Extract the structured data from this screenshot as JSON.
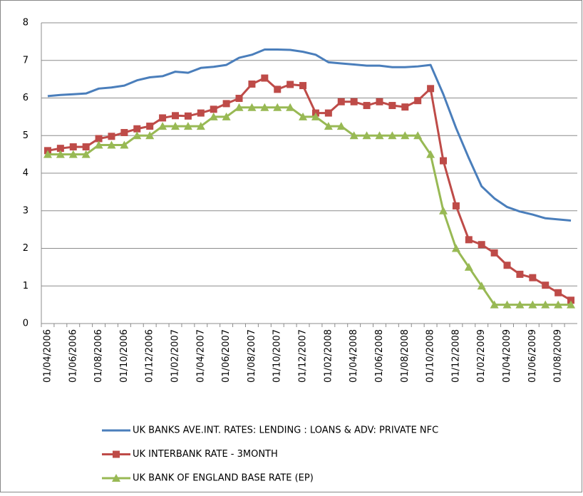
{
  "chart_data": {
    "type": "line",
    "categories": [
      "01/04/2006",
      null,
      "01/06/2006",
      null,
      "01/08/2006",
      null,
      "01/10/2006",
      null,
      "01/12/2006",
      null,
      "01/02/2007",
      null,
      "01/04/2007",
      null,
      "01/06/2007",
      null,
      "01/08/2007",
      null,
      "01/10/2007",
      null,
      "01/12/2007",
      null,
      "01/02/2008",
      null,
      "01/04/2008",
      null,
      "01/06/2008",
      null,
      "01/08/2008",
      null,
      "01/10/2008",
      null,
      "01/12/2008",
      null,
      "01/02/2009",
      null,
      "01/04/2009",
      null,
      "01/06/2009",
      null,
      "01/08/2009",
      null
    ],
    "series": [
      {
        "name": "UK BANKS AVE.INT.  RATES:  LENDING  : LOANS & ADV: PRIVATE  NFC",
        "color": "#4a7ebb",
        "marker": "none",
        "values": [
          6.05,
          6.08,
          6.1,
          6.12,
          6.25,
          6.28,
          6.33,
          6.47,
          6.55,
          6.58,
          6.7,
          6.67,
          6.8,
          6.83,
          6.88,
          7.07,
          7.15,
          7.29,
          7.29,
          7.28,
          7.23,
          7.15,
          6.95,
          6.92,
          6.89,
          6.86,
          6.86,
          6.82,
          6.82,
          6.84,
          6.88,
          6.1,
          5.2,
          4.4,
          3.65,
          3.33,
          3.1,
          2.98,
          2.9,
          2.8,
          2.77,
          2.74
        ]
      },
      {
        "name": "UK INTERBANK  RATE - 3MONTH",
        "color": "#be4b48",
        "marker": "square",
        "values": [
          4.6,
          4.66,
          4.7,
          4.7,
          4.92,
          4.98,
          5.08,
          5.18,
          5.25,
          5.47,
          5.53,
          5.52,
          5.6,
          5.7,
          5.85,
          5.99,
          6.37,
          6.53,
          6.23,
          6.36,
          6.33,
          5.6,
          5.6,
          5.9,
          5.9,
          5.8,
          5.9,
          5.8,
          5.76,
          5.93,
          6.25,
          4.33,
          3.13,
          2.23,
          2.1,
          1.88,
          1.55,
          1.31,
          1.22,
          1.02,
          0.82,
          0.62
        ]
      },
      {
        "name": "UK BANK OF ENGLAND  BASE RATE (EP)",
        "color": "#98b954",
        "marker": "triangle",
        "values": [
          4.5,
          4.5,
          4.5,
          4.5,
          4.75,
          4.75,
          4.75,
          5.0,
          5.0,
          5.25,
          5.25,
          5.25,
          5.25,
          5.5,
          5.5,
          5.75,
          5.75,
          5.75,
          5.75,
          5.75,
          5.5,
          5.5,
          5.25,
          5.25,
          5.0,
          5.0,
          5.0,
          5.0,
          5.0,
          5.0,
          4.5,
          3.0,
          2.0,
          1.5,
          1.0,
          0.5,
          0.5,
          0.5,
          0.5,
          0.5,
          0.5,
          0.5
        ]
      }
    ],
    "ylim": [
      0,
      8
    ],
    "yticks": [
      0,
      1,
      2,
      3,
      4,
      5,
      6,
      7,
      8
    ],
    "grid": true,
    "legend": "bottom"
  }
}
